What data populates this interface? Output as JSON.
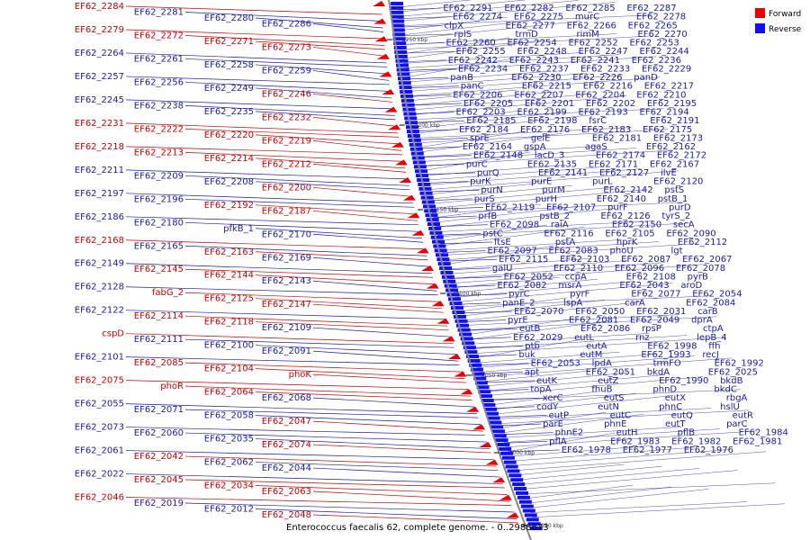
{
  "caption": "Enterococcus faecalis 62, complete genome. - 0..2988673",
  "legend": [
    {
      "label": "Forward",
      "color": "#ee0000"
    },
    {
      "label": "Reverse",
      "color": "#1111ee"
    }
  ],
  "colors": {
    "forward_label": "#cc0000",
    "reverse_label": "#1a1aaa",
    "forward_feature": "#ee0000",
    "reverse_feature": "#1111ee",
    "backbone": "#888888"
  },
  "ticks": [
    "2250 kbp",
    "2200 kbp",
    "2150 kbp",
    "2100 kbp",
    "2050 kbp",
    "2000 kbp",
    "1950 kbp"
  ],
  "left_labels": [
    {
      "t": "EF62_2284",
      "s": "f"
    },
    {
      "t": "EF62_2281",
      "s": "r"
    },
    {
      "t": "EF62_2280",
      "s": "r"
    },
    {
      "t": "EF62_2286",
      "s": "r"
    },
    {
      "t": "EF62_2279",
      "s": "f"
    },
    {
      "t": "EF62_2272",
      "s": "f"
    },
    {
      "t": "EF62_2271",
      "s": "f"
    },
    {
      "t": "EF62_2273",
      "s": "f"
    },
    {
      "t": "EF62_2264",
      "s": "r"
    },
    {
      "t": "EF62_2261",
      "s": "r"
    },
    {
      "t": "EF62_2258",
      "s": "r"
    },
    {
      "t": "EF62_2259",
      "s": "r"
    },
    {
      "t": "EF62_2257",
      "s": "r"
    },
    {
      "t": "EF62_2256",
      "s": "r"
    },
    {
      "t": "EF62_2249",
      "s": "r"
    },
    {
      "t": "EF62_2246",
      "s": "f"
    },
    {
      "t": "EF62_2245",
      "s": "r"
    },
    {
      "t": "EF62_2238",
      "s": "r"
    },
    {
      "t": "EF62_2235",
      "s": "r"
    },
    {
      "t": "EF62_2232",
      "s": "f"
    },
    {
      "t": "EF62_2231",
      "s": "f"
    },
    {
      "t": "EF62_2222",
      "s": "f"
    },
    {
      "t": "EF62_2220",
      "s": "f"
    },
    {
      "t": "EF62_2219",
      "s": "f"
    },
    {
      "t": "EF62_2218",
      "s": "f"
    },
    {
      "t": "EF62_2213",
      "s": "f"
    },
    {
      "t": "EF62_2214",
      "s": "f"
    },
    {
      "t": "EF62_2212",
      "s": "f"
    },
    {
      "t": "EF62_2211",
      "s": "r"
    },
    {
      "t": "EF62_2209",
      "s": "r"
    },
    {
      "t": "EF62_2208",
      "s": "r"
    },
    {
      "t": "EF62_2200",
      "s": "f"
    },
    {
      "t": "EF62_2197",
      "s": "r"
    },
    {
      "t": "EF62_2196",
      "s": "r"
    },
    {
      "t": "EF62_2192",
      "s": "f"
    },
    {
      "t": "EF62_2187",
      "s": "f"
    },
    {
      "t": "EF62_2186",
      "s": "r"
    },
    {
      "t": "EF62_2180",
      "s": "r"
    },
    {
      "t": "pfkB_1",
      "s": "r"
    },
    {
      "t": "EF62_2170",
      "s": "r"
    },
    {
      "t": "EF62_2168",
      "s": "f"
    },
    {
      "t": "EF62_2165",
      "s": "r"
    },
    {
      "t": "EF62_2163",
      "s": "f"
    },
    {
      "t": "EF62_2169",
      "s": "r"
    },
    {
      "t": "EF62_2149",
      "s": "r"
    },
    {
      "t": "EF62_2145",
      "s": "f"
    },
    {
      "t": "EF62_2144",
      "s": "f"
    },
    {
      "t": "EF62_2143",
      "s": "r"
    },
    {
      "t": "EF62_2128",
      "s": "r"
    },
    {
      "t": "fabG_2",
      "s": "f"
    },
    {
      "t": "EF62_2125",
      "s": "f"
    },
    {
      "t": "EF62_2147",
      "s": "f"
    },
    {
      "t": "EF62_2122",
      "s": "r"
    },
    {
      "t": "EF62_2114",
      "s": "f"
    },
    {
      "t": "EF62_2118",
      "s": "f"
    },
    {
      "t": "EF62_2109",
      "s": "r"
    },
    {
      "t": "cspD",
      "s": "f"
    },
    {
      "t": "EF62_2111",
      "s": "r"
    },
    {
      "t": "EF62_2100",
      "s": "r"
    },
    {
      "t": "EF62_2091",
      "s": "r"
    },
    {
      "t": "EF62_2101",
      "s": "r"
    },
    {
      "t": "EF62_2085",
      "s": "f"
    },
    {
      "t": "EF62_2104",
      "s": "f"
    },
    {
      "t": "phoK",
      "s": "f"
    },
    {
      "t": "EF62_2075",
      "s": "f"
    },
    {
      "t": "phoR",
      "s": "f"
    },
    {
      "t": "EF62_2064",
      "s": "f"
    },
    {
      "t": "EF62_2068",
      "s": "r"
    },
    {
      "t": "EF62_2055",
      "s": "r"
    },
    {
      "t": "EF62_2071",
      "s": "r"
    },
    {
      "t": "EF62_2058",
      "s": "r"
    },
    {
      "t": "EF62_2047",
      "s": "f"
    },
    {
      "t": "EF62_2073",
      "s": "r"
    },
    {
      "t": "EF62_2060",
      "s": "r"
    },
    {
      "t": "EF62_2035",
      "s": "r"
    },
    {
      "t": "EF62_2074",
      "s": "f"
    },
    {
      "t": "EF62_2061",
      "s": "r"
    },
    {
      "t": "EF62_2042",
      "s": "f"
    },
    {
      "t": "EF62_2062",
      "s": "r"
    },
    {
      "t": "EF62_2044",
      "s": "r"
    },
    {
      "t": "EF62_2022",
      "s": "r"
    },
    {
      "t": "EF62_2045",
      "s": "f"
    },
    {
      "t": "EF62_2034",
      "s": "f"
    },
    {
      "t": "EF62_2063",
      "s": "f"
    },
    {
      "t": "EF62_2046",
      "s": "f"
    },
    {
      "t": "EF62_2019",
      "s": "r"
    },
    {
      "t": "EF62_2012",
      "s": "r"
    },
    {
      "t": "EF62_2048",
      "s": "f"
    }
  ],
  "right_labels": [
    "EF62_2291",
    "EF62_2282",
    "EF62_2285",
    "EF62_2287",
    "EF62_2274",
    "EF62_2275",
    "murC",
    "EF62_2278",
    "clpX",
    "EF62_2277",
    "EF62_2266",
    "EF62_2265",
    "rplS",
    "trmD",
    "rimM",
    "EF62_2270",
    "EF62_2260",
    "EF62_2254",
    "EF62_2252",
    "EF62_2253",
    "EF62_2255",
    "EF62_2248",
    "EF62_2247",
    "EF62_2244",
    "EF62_2242",
    "EF62_2243",
    "EF62_2241",
    "EF62_2236",
    "EF62_2234",
    "EF62_2237",
    "EF62_2233",
    "EF62_2229",
    "panB",
    "EF62_2230",
    "EF62_2226",
    "panD",
    "panC",
    "EF62_2215",
    "EF62_2216",
    "EF62_2217",
    "EF62_2206",
    "EF62_2207",
    "EF62_2204",
    "EF62_2210",
    "EF62_2205",
    "EF62_2201",
    "EF62_2202",
    "EF62_2195",
    "EF62_2203",
    "EF62_2199",
    "EF62_2193",
    "EF62_2194",
    "EF62_2185",
    "EF62_2198",
    "fsrC",
    "EF62_2191",
    "EF62_2184",
    "EF62_2176",
    "EF62_2183",
    "EF62_2175",
    "sprE",
    "gelE",
    "EF62_2181",
    "EF62_2173",
    "EF62_2164",
    "gspA",
    "agaS",
    "EF62_2162",
    "EF62_2148",
    "lacD_3",
    "EF62_2174",
    "EF62_2172",
    "purC",
    "EF62_2135",
    "EF62_2171",
    "EF62_2167",
    "purQ",
    "EF62_2141",
    "EF62_2127",
    "ilvE",
    "purK",
    "purE",
    "purL",
    "EF62_2120",
    "purN",
    "purM",
    "EF62_2142",
    "pstS",
    "purS",
    "purH",
    "EF62_2140",
    "pstB_1",
    "EF62_2119",
    "EF62_2107",
    "purF",
    "purD",
    "prfB",
    "pstB_2",
    "EF62_2126",
    "tyrS_2",
    "EF62_2098",
    "raiA",
    "EF62_2150",
    "secA",
    "pstC",
    "EF62_2116",
    "EF62_2105",
    "EF62_2090",
    "ftsE",
    "pstA",
    "hprK",
    "EF62_2112",
    "EF62_2097",
    "EF62_2083",
    "phoU",
    "lgt",
    "EF62_2115",
    "EF62_2103",
    "EF62_2087",
    "EF62_2067",
    "galU",
    "EF62_2110",
    "EF62_2096",
    "EF62_2078",
    "EF62_2052",
    "ccpA",
    "EF62_2108",
    "pyrB",
    "EF62_2082",
    "msrA",
    "EF62_2043",
    "aroD",
    "pyrC",
    "pyrF",
    "EF62_2077",
    "EF62_2054",
    "panE_2",
    "lspA",
    "carA",
    "EF62_2084",
    "EF62_2070",
    "EF62_2050",
    "EF62_2031",
    "carB",
    "pyrE",
    "EF62_2081",
    "EF62_2049",
    "dprA",
    "eutB",
    "EF62_2086",
    "rpsP",
    "ctpA",
    "EF62_2029",
    "eutL",
    "rnz",
    "lepB_4",
    "ptb",
    "eutA",
    "EF62_1998",
    "ffh",
    "buk",
    "eutM",
    "EF62_1993",
    "recJ",
    "EF62_2053",
    "lpdA",
    "trmFO",
    "EF62_1992",
    "apt",
    "EF62_2051",
    "bkdA",
    "EF62_2025",
    "eutK",
    "eutZ",
    "EF62_1990",
    "bkdB",
    "topA",
    "fhuB",
    "phnD",
    "bkdC",
    "xerC",
    "eutS",
    "eutX",
    "rbgA",
    "codY",
    "eutN",
    "phnC",
    "hslU",
    "eutP",
    "eutC",
    "eutQ",
    "eutR",
    "parE",
    "phnE",
    "eutT",
    "parC",
    "phnE2",
    "eutH",
    "pflB",
    "EF62_1984",
    "pflA",
    "EF62_1983",
    "EF62_1982",
    "EF62_1981",
    "EF62_1978",
    "EF62_1977",
    "EF62_1976"
  ]
}
